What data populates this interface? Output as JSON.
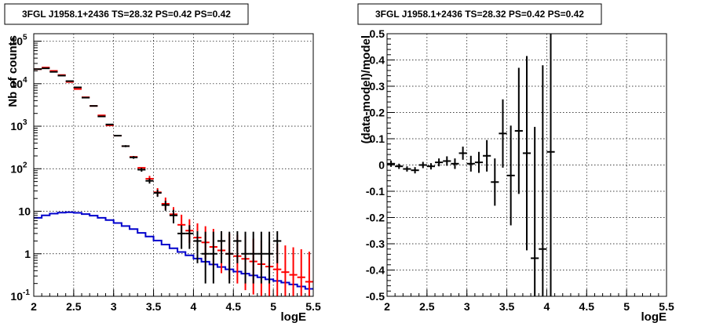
{
  "chart_data": [
    {
      "type": "line",
      "title": "3FGL J1958.1+2436 TS=28.32 PS=0.42 PS=0.42",
      "xlabel": "logE",
      "ylabel": "Nb of counts",
      "xlim": [
        2,
        5.5
      ],
      "ylim": [
        0.1,
        150000
      ],
      "log_y": true,
      "grid": true,
      "x_ticks": [
        "2",
        "2.5",
        "3",
        "3.5",
        "4",
        "4.5",
        "5",
        "5.5"
      ],
      "y_ticks": [
        {
          "v": 0.1,
          "label": "10",
          "exp": "-1"
        },
        {
          "v": 1,
          "label": "1",
          "exp": ""
        },
        {
          "v": 10,
          "label": "10",
          "exp": ""
        },
        {
          "v": 100,
          "label": "10",
          "exp": "2"
        },
        {
          "v": 1000,
          "label": "10",
          "exp": "3"
        },
        {
          "v": 10000,
          "label": "10",
          "exp": "4"
        },
        {
          "v": 100000,
          "label": "10",
          "exp": "5"
        }
      ],
      "series": [
        {
          "role": "model_total",
          "color": "#ff0000",
          "x": [
            2.0,
            2.1,
            2.2,
            2.3,
            2.4,
            2.5,
            2.6,
            2.7,
            2.8,
            2.9,
            3.0,
            3.1,
            3.2,
            3.3,
            3.4,
            3.5,
            3.6,
            3.7,
            3.8,
            3.9,
            4.0,
            4.1,
            4.2,
            4.3,
            4.4,
            4.5,
            4.6,
            4.7,
            4.8,
            4.9,
            5.0,
            5.1,
            5.2,
            5.3,
            5.4
          ],
          "values": [
            22000,
            24000,
            20000,
            16000,
            11000,
            7500,
            4800,
            3000,
            1800,
            1050,
            600,
            340,
            190,
            105,
            58,
            28,
            15,
            8.5,
            4.8,
            3.5,
            2.4,
            1.85,
            1.45,
            1.2,
            1.0,
            0.88,
            0.76,
            0.66,
            0.57,
            0.5,
            0.43,
            0.37,
            0.32,
            0.28,
            0.22
          ],
          "y_err_low": [
            0,
            0,
            0,
            0,
            0,
            0,
            0,
            0,
            0,
            0,
            0,
            0,
            0,
            0,
            8,
            5,
            4,
            2.5,
            2.0,
            1.7,
            1.3,
            1.1,
            0.95,
            0.85,
            0.75,
            0.68,
            0.62,
            0.55,
            0.48,
            0.43,
            0.37,
            0.32,
            0.28,
            0.25,
            0.2
          ],
          "y_err_high": [
            0,
            0,
            0,
            0,
            0,
            0,
            0,
            0,
            0,
            0,
            0,
            0,
            0,
            0,
            10,
            7,
            6,
            4,
            3.5,
            3,
            2.8,
            2.6,
            2.4,
            2.1,
            2,
            1.9,
            1.8,
            1.6,
            1.5,
            1.4,
            1.3,
            1.2,
            1.1,
            1,
            0.9
          ]
        },
        {
          "role": "model_source",
          "color": "#0000cc",
          "x": [
            2.0,
            2.1,
            2.2,
            2.3,
            2.4,
            2.5,
            2.6,
            2.7,
            2.8,
            2.9,
            3.0,
            3.1,
            3.2,
            3.3,
            3.4,
            3.5,
            3.6,
            3.7,
            3.8,
            3.9,
            4.0,
            4.1,
            4.2,
            4.3,
            4.4,
            4.5,
            4.6,
            4.7,
            4.8,
            4.9,
            5.0,
            5.1,
            5.2,
            5.3,
            5.4
          ],
          "values": [
            7.0,
            8.0,
            8.8,
            9.3,
            9.5,
            9.2,
            8.6,
            7.9,
            7.0,
            6.2,
            5.3,
            4.5,
            3.8,
            3.1,
            2.55,
            2.05,
            1.65,
            1.35,
            1.1,
            0.92,
            0.77,
            0.65,
            0.56,
            0.49,
            0.43,
            0.38,
            0.34,
            0.31,
            0.28,
            0.25,
            0.23,
            0.21,
            0.19,
            0.17,
            0.15
          ]
        },
        {
          "role": "data",
          "color": "#000000",
          "x": [
            2.05,
            2.15,
            2.25,
            2.35,
            2.45,
            2.55,
            2.65,
            2.75,
            2.85,
            2.95,
            3.05,
            3.15,
            3.25,
            3.35,
            3.45,
            3.55,
            3.65,
            3.75,
            3.85,
            3.95,
            4.05,
            4.15,
            4.25,
            4.35,
            4.45,
            4.55,
            4.65,
            4.75,
            4.85,
            4.95,
            5.05
          ],
          "values": [
            22000,
            23000,
            19000,
            15500,
            11500,
            8200,
            4700,
            3000,
            1700,
            1100,
            600,
            340,
            185,
            95,
            52,
            27,
            14,
            8,
            3,
            3,
            2,
            1,
            1,
            2,
            1,
            2,
            1,
            1,
            1,
            1,
            2
          ],
          "y_err_low": [
            150,
            150,
            140,
            125,
            107,
            90,
            68,
            55,
            41,
            33,
            24,
            18,
            13.5,
            9.7,
            7.2,
            5.2,
            3.7,
            2.8,
            1.7,
            1.7,
            1.4,
            0.8,
            0.8,
            1.4,
            0.8,
            1.4,
            0.8,
            0.8,
            0.8,
            0.8,
            1.4
          ],
          "y_err_high": [
            150,
            150,
            140,
            125,
            107,
            90,
            68,
            55,
            41,
            33,
            24,
            18,
            13.5,
            9.7,
            7.2,
            5.2,
            3.7,
            2.8,
            1.7,
            1.7,
            1.4,
            2.3,
            2.3,
            1.4,
            2.3,
            1.4,
            2.3,
            2.3,
            2.3,
            2.3,
            1.4
          ]
        }
      ]
    },
    {
      "type": "scatter",
      "title": "3FGL J1958.1+2436 TS=28.32 PS=0.42 PS=0.42",
      "xlabel": "logE",
      "ylabel": "(data-model)/model",
      "xlim": [
        2,
        5.5
      ],
      "ylim": [
        -0.5,
        0.5
      ],
      "grid": true,
      "x_ticks": [
        "2",
        "2.5",
        "3",
        "3.5",
        "4",
        "4.5",
        "5",
        "5.5"
      ],
      "y_ticks": [
        "-0.5",
        "-0.4",
        "-0.3",
        "-0.2",
        "-0.1",
        "0",
        "0.1",
        "0.2",
        "0.3",
        "0.4",
        "0.5"
      ],
      "series": [
        {
          "role": "residuals",
          "color": "#000000",
          "x": [
            2.05,
            2.15,
            2.25,
            2.35,
            2.45,
            2.55,
            2.65,
            2.75,
            2.85,
            2.95,
            3.05,
            3.15,
            3.25,
            3.35,
            3.45,
            3.55,
            3.65,
            3.75,
            3.85,
            3.95,
            4.05
          ],
          "values": [
            0.005,
            -0.005,
            -0.015,
            -0.02,
            0.0,
            -0.005,
            0.01,
            0.015,
            0.005,
            0.045,
            0.005,
            0.01,
            0.035,
            -0.065,
            0.12,
            -0.04,
            0.13,
            0.045,
            -0.355,
            -0.32,
            0.05
          ],
          "y_err": [
            0.012,
            0.01,
            0.01,
            0.012,
            0.012,
            0.012,
            0.015,
            0.018,
            0.02,
            0.025,
            0.03,
            0.04,
            0.06,
            0.09,
            0.13,
            0.19,
            0.24,
            0.37,
            0.5,
            0.7,
            0.7
          ]
        }
      ]
    }
  ]
}
